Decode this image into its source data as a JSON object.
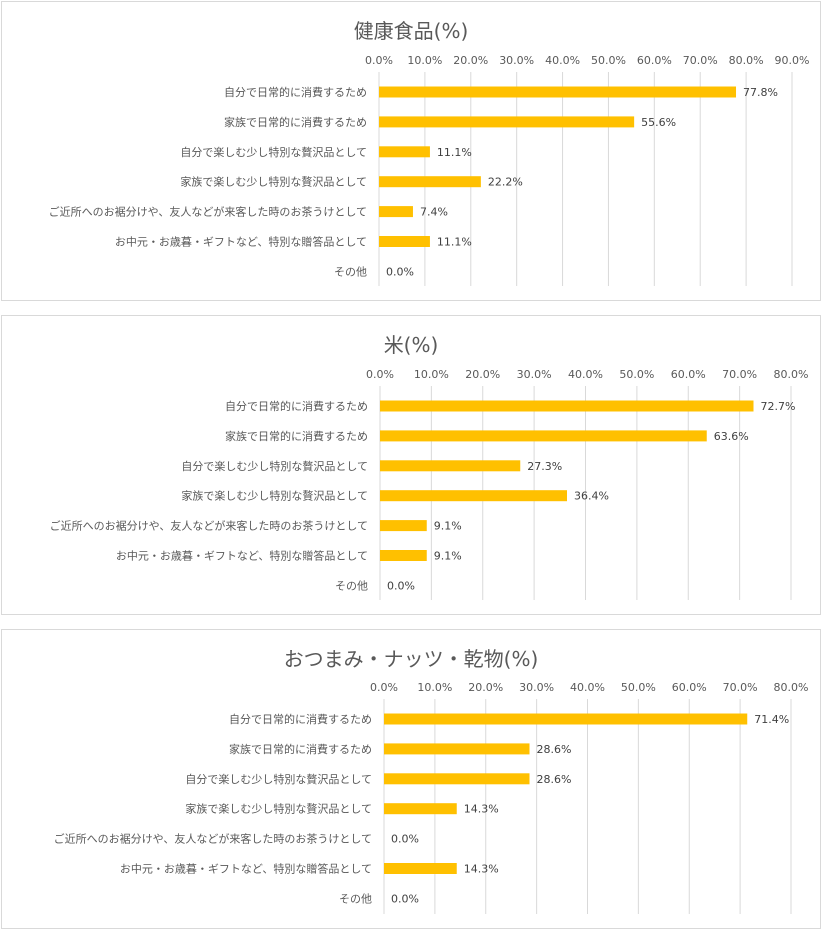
{
  "chart_data": [
    {
      "type": "bar",
      "orientation": "horizontal",
      "title": "健康食品(%)",
      "categories": [
        "自分で日常的に消費するため",
        "家族で日常的に消費するため",
        "自分で楽しむ少し特別な贅沢品として",
        "家族で楽しむ少し特別な贅沢品として",
        "ご近所へのお裾分けや、友人などが来客した時のお茶うけとして",
        "お中元・お歳暮・ギフトなど、特別な贈答品として",
        "その他"
      ],
      "values": [
        77.8,
        55.6,
        11.1,
        22.2,
        7.4,
        11.1,
        0.0
      ],
      "value_labels": [
        "77.8%",
        "55.6%",
        "11.1%",
        "22.2%",
        "7.4%",
        "11.1%",
        "0.0%"
      ],
      "xlim": [
        0,
        90
      ],
      "ticks": [
        "0.0%",
        "10.0%",
        "20.0%",
        "30.0%",
        "40.0%",
        "50.0%",
        "60.0%",
        "70.0%",
        "80.0%",
        "90.0%"
      ],
      "grid": true,
      "bar_color": "#FFC000"
    },
    {
      "type": "bar",
      "orientation": "horizontal",
      "title": "米(%)",
      "categories": [
        "自分で日常的に消費するため",
        "家族で日常的に消費するため",
        "自分で楽しむ少し特別な贅沢品として",
        "家族で楽しむ少し特別な贅沢品として",
        "ご近所へのお裾分けや、友人などが来客した時のお茶うけとして",
        "お中元・お歳暮・ギフトなど、特別な贈答品として",
        "その他"
      ],
      "values": [
        72.7,
        63.6,
        27.3,
        36.4,
        9.1,
        9.1,
        0.0
      ],
      "value_labels": [
        "72.7%",
        "63.6%",
        "27.3%",
        "36.4%",
        "9.1%",
        "9.1%",
        "0.0%"
      ],
      "xlim": [
        0,
        80
      ],
      "ticks": [
        "0.0%",
        "10.0%",
        "20.0%",
        "30.0%",
        "40.0%",
        "50.0%",
        "60.0%",
        "70.0%",
        "80.0%"
      ],
      "grid": true,
      "bar_color": "#FFC000"
    },
    {
      "type": "bar",
      "orientation": "horizontal",
      "title": "おつまみ・ナッツ・乾物(%)",
      "categories": [
        "自分で日常的に消費するため",
        "家族で日常的に消費するため",
        "自分で楽しむ少し特別な贅沢品として",
        "家族で楽しむ少し特別な贅沢品として",
        "ご近所へのお裾分けや、友人などが来客した時のお茶うけとして",
        "お中元・お歳暮・ギフトなど、特別な贈答品として",
        "その他"
      ],
      "values": [
        71.4,
        28.6,
        28.6,
        14.3,
        0.0,
        14.3,
        0.0
      ],
      "value_labels": [
        "71.4%",
        "28.6%",
        "28.6%",
        "14.3%",
        "0.0%",
        "14.3%",
        "0.0%"
      ],
      "xlim": [
        0,
        80
      ],
      "ticks": [
        "0.0%",
        "10.0%",
        "20.0%",
        "30.0%",
        "40.0%",
        "50.0%",
        "60.0%",
        "70.0%",
        "80.0%"
      ],
      "grid": true,
      "bar_color": "#FFC000"
    }
  ]
}
